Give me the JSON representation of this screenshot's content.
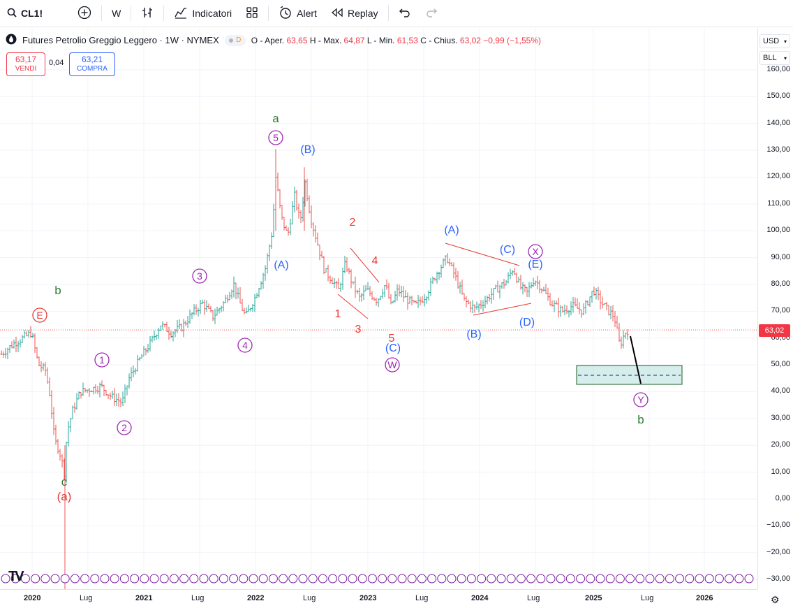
{
  "toolbar": {
    "symbol": "CL1!",
    "interval": "W",
    "indicators_label": "Indicatori",
    "alert_label": "Alert",
    "replay_label": "Replay"
  },
  "legend": {
    "title": "Futures Petrolio Greggio Leggero · 1W · NYMEX",
    "badge": "D",
    "open_label": "O - Aper.",
    "open": "63,65",
    "high_label": "H - Max.",
    "high": "64,87",
    "low_label": "L - Min.",
    "low": "61,53",
    "close_label": "C - Chius.",
    "close": "63,02",
    "change": "−0,99 (−1,55%)"
  },
  "trade": {
    "sell_price": "63,17",
    "sell_label": "VENDI",
    "spread": "0,04",
    "buy_price": "63,21",
    "buy_label": "COMPRA"
  },
  "axis": {
    "currency": "USD",
    "unit": "BLL",
    "current_price": "63,02",
    "price_ticks": [
      "160,00",
      "150,00",
      "140,00",
      "130,00",
      "120,00",
      "110,00",
      "100,00",
      "90,00",
      "80,00",
      "70,00",
      "60,00",
      "50,00",
      "40,00",
      "30,00",
      "20,00",
      "10,00",
      "0,00",
      "−10,00",
      "−20,00",
      "−30,00"
    ],
    "time_ticks": [
      {
        "label": "2020",
        "year": true
      },
      {
        "label": "Lug",
        "year": false
      },
      {
        "label": "2021",
        "year": true
      },
      {
        "label": "Lug",
        "year": false
      },
      {
        "label": "2022",
        "year": true
      },
      {
        "label": "Lug",
        "year": false
      },
      {
        "label": "2023",
        "year": true
      },
      {
        "label": "Lug",
        "year": false
      },
      {
        "label": "2024",
        "year": true
      },
      {
        "label": "Lug",
        "year": false
      },
      {
        "label": "2025",
        "year": true
      },
      {
        "label": "Lug",
        "year": false
      },
      {
        "label": "2026",
        "year": true
      }
    ]
  },
  "wave_labels": {
    "a": "a",
    "b": "b",
    "c": "c",
    "paren_a": "(a)",
    "E": "E",
    "one": "1",
    "two": "2",
    "three": "3",
    "four": "4",
    "five": "5",
    "A": "(A)",
    "B": "(B)",
    "C": "(C)",
    "D": "(D)",
    "Ep": "(E)",
    "W": "W",
    "X": "X",
    "Y": "Y",
    "r1": "1",
    "r2": "2",
    "r3": "3",
    "r4": "4",
    "r5": "5"
  },
  "colors": {
    "up": "#26a69a",
    "down": "#ef5350",
    "purple": "#9c27b0",
    "blue": "#2962ff",
    "green": "#2e7d32",
    "red": "#e53935",
    "target_zone": "#b2dfdb"
  }
}
